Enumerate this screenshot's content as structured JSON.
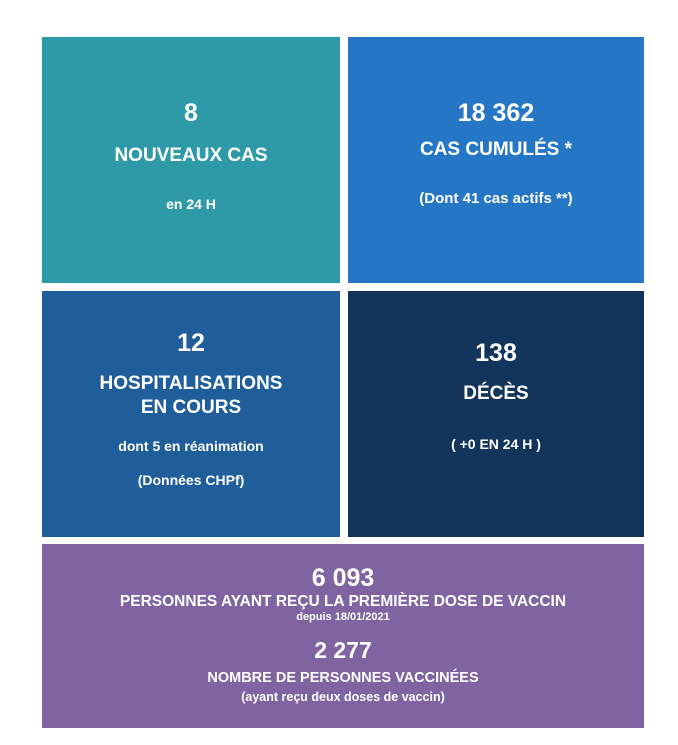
{
  "colors": {
    "new_cases": "#2e9aa8",
    "cumulative": "#2676c6",
    "hospital": "#1f5e9b",
    "deaths": "#13355b",
    "vaccine": "#8064a2"
  },
  "new_cases": {
    "value": "8",
    "label": "NOUVEAUX CAS",
    "sub": "en 24 H"
  },
  "cumulative": {
    "value": "18 362",
    "label": "CAS CUMULÉS *",
    "sub": "(Dont 41 cas actifs **)"
  },
  "hospital": {
    "value": "12",
    "label_1": "HOSPITALISATIONS",
    "label_2": "EN COURS",
    "sub": "dont 5 en réanimation",
    "source": "(Données CHPf)"
  },
  "deaths": {
    "value": "138",
    "label": "DÉCÈS",
    "sub": "( +0 EN 24 H )"
  },
  "vaccine": {
    "first_value": "6 093",
    "first_label": "PERSONNES AYANT REÇU LA PREMIÈRE DOSE DE VACCIN",
    "first_sub": "depuis 18/01/2021",
    "second_value": "2 277",
    "second_label": "NOMBRE DE PERSONNES VACCINÉES",
    "second_sub": "(ayant reçu deux doses de vaccin)"
  }
}
